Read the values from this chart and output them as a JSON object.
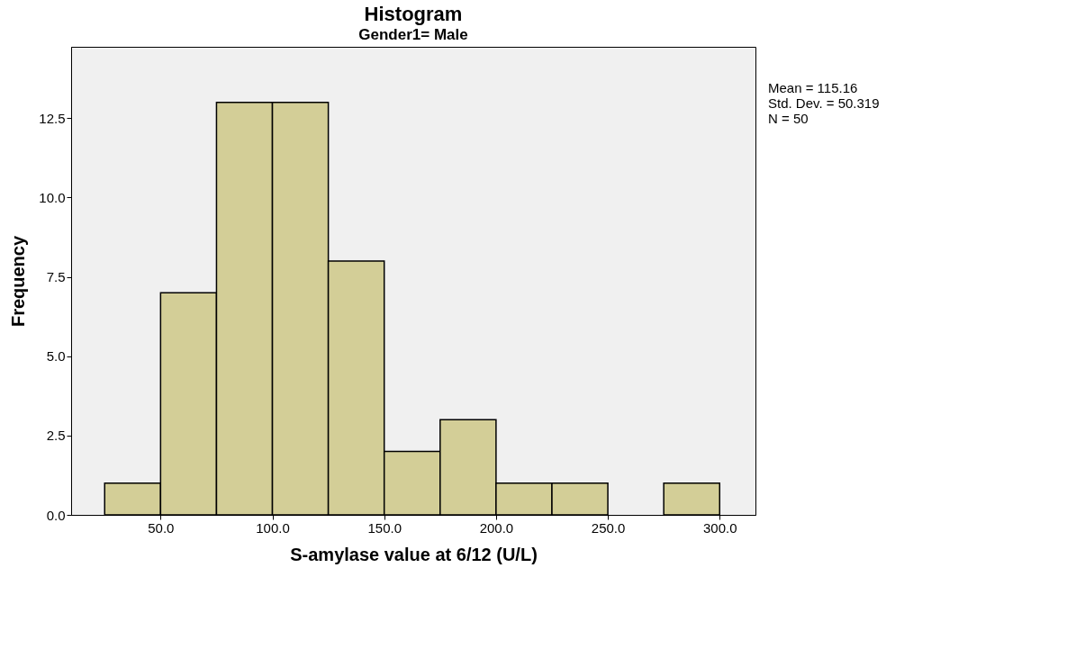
{
  "chart_data": {
    "type": "histogram",
    "title": "Histogram",
    "subtitle": "Gender1= Male",
    "xlabel": "S-amylase value at 6/12 (U/L)",
    "ylabel": "Frequency",
    "bins": [
      25,
      50,
      75,
      100,
      125,
      150,
      175,
      200,
      225,
      250,
      275,
      300
    ],
    "values": [
      1,
      7,
      13,
      13,
      8,
      2,
      3,
      1,
      1,
      0,
      1
    ],
    "color": "#d3ce97",
    "xlim": [
      10,
      316
    ],
    "ylim": [
      0,
      14.75
    ],
    "xticks": [
      {
        "value": 50,
        "label": "50.0"
      },
      {
        "value": 100,
        "label": "100.0"
      },
      {
        "value": 150,
        "label": "150.0"
      },
      {
        "value": 200,
        "label": "200.0"
      },
      {
        "value": 250,
        "label": "250.0"
      },
      {
        "value": 300,
        "label": "300.0"
      }
    ],
    "yticks": [
      {
        "value": 0,
        "label": "0.0"
      },
      2.5,
      {
        "value": 5,
        "label": "5.0"
      },
      7.5,
      {
        "value": 10,
        "label": "10.0"
      },
      12.5
    ],
    "grid": false,
    "annotations": [
      "Mean = 115.16",
      "Std. Dev. = 50.319",
      "N = 50"
    ]
  }
}
